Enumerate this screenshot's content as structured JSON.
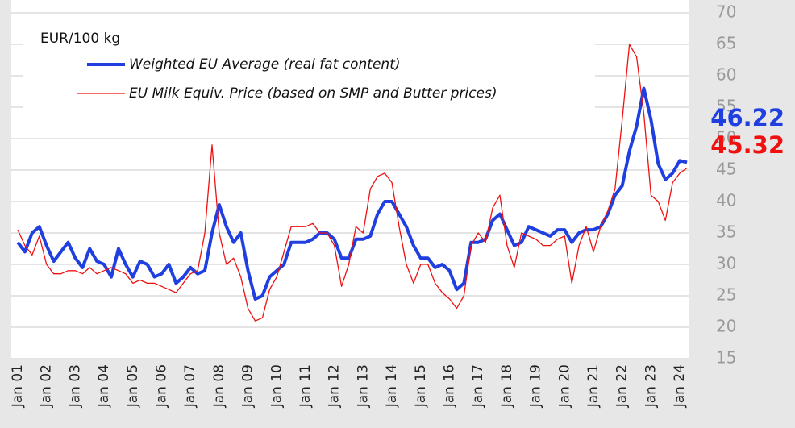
{
  "chart_data": {
    "type": "line",
    "y_label": "EUR/100 kg",
    "categories": [
      "Jan 01",
      null,
      null,
      null,
      "Jan 02",
      null,
      null,
      null,
      "Jan 03",
      null,
      null,
      null,
      "Jan 04",
      null,
      null,
      null,
      "Jan 05",
      null,
      null,
      null,
      "Jan 06",
      null,
      null,
      null,
      "Jan 07",
      null,
      null,
      null,
      "Jan 08",
      null,
      null,
      null,
      "Jan 09",
      null,
      null,
      null,
      "Jan 10",
      null,
      null,
      null,
      "Jan 11",
      null,
      null,
      null,
      "Jan 12",
      null,
      null,
      null,
      "Jan 13",
      null,
      null,
      null,
      "Jan 14",
      null,
      null,
      null,
      "Jan 15",
      null,
      null,
      null,
      "Jan 16",
      null,
      null,
      null,
      "Jan 17",
      null,
      null,
      null,
      "Jan 18",
      null,
      null,
      null,
      "Jan 19",
      null,
      null,
      null,
      "Jan 20",
      null,
      null,
      null,
      "Jan 21",
      null,
      null,
      null,
      "Jan 22",
      null,
      null,
      null,
      "Jan 23",
      null,
      null,
      null,
      "Jan 24",
      null
    ],
    "series": [
      {
        "name": "Weighted EU Average (real fat content)",
        "color": "#1f3fe0",
        "width": 4,
        "values": [
          33.5,
          32,
          35,
          36,
          33,
          30.5,
          32,
          33.5,
          31,
          29.5,
          32.5,
          30.5,
          30,
          28,
          32.5,
          30,
          28,
          30.5,
          30,
          28,
          28.5,
          30,
          27,
          28,
          29.5,
          28.5,
          29,
          35,
          39.5,
          36,
          33.5,
          35,
          29,
          24.5,
          25,
          28,
          29,
          30,
          33.5,
          33.5,
          33.5,
          34,
          35,
          35,
          34,
          31,
          31,
          34,
          34,
          34.5,
          38,
          40,
          40,
          38,
          36,
          33,
          31,
          31,
          29.5,
          30,
          29,
          26,
          27,
          33.5,
          33.5,
          34,
          37,
          38,
          35.5,
          33,
          33.5,
          36,
          35.5,
          35,
          34.5,
          35.5,
          35.5,
          33.5,
          35,
          35.5,
          35.5,
          36,
          38,
          41,
          42.5,
          48,
          52,
          58,
          53,
          46,
          43.5,
          44.5,
          46.5,
          46.22
        ]
      },
      {
        "name": "EU Milk Equiv. Price (based on SMP and Butter prices)",
        "color": "#f01010",
        "width": 1.3,
        "values": [
          35.5,
          33,
          31.5,
          34.5,
          30,
          28.5,
          28.5,
          29,
          29,
          28.5,
          29.5,
          28.5,
          29,
          29.5,
          29,
          28.5,
          27,
          27.5,
          27,
          27,
          26.5,
          26,
          25.5,
          27,
          28.5,
          29,
          35,
          49,
          35,
          30,
          31,
          28,
          23,
          21,
          21.5,
          26,
          28,
          32,
          36,
          36,
          36,
          36.5,
          35,
          35,
          33,
          26.5,
          30,
          36,
          35,
          42,
          44,
          44.5,
          43,
          36,
          30,
          27,
          30,
          30,
          27,
          25.5,
          24.5,
          23,
          25,
          33,
          35,
          33.5,
          39,
          41,
          33,
          29.5,
          35,
          34.5,
          34,
          33,
          33,
          34,
          34.5,
          27,
          33,
          36,
          32,
          36,
          38.5,
          42,
          53,
          65,
          63,
          54,
          41,
          40,
          37,
          43,
          44.5,
          45.32
        ]
      }
    ],
    "annotations": [
      {
        "text": "46.22",
        "color": "#1f3fe0"
      },
      {
        "text": "45.32",
        "color": "#f01010"
      }
    ],
    "ylim": [
      15,
      70
    ],
    "yticks": [
      15,
      20,
      25,
      30,
      35,
      40,
      45,
      50,
      55,
      60,
      65,
      70
    ],
    "grid": true,
    "axis_side": "right"
  }
}
